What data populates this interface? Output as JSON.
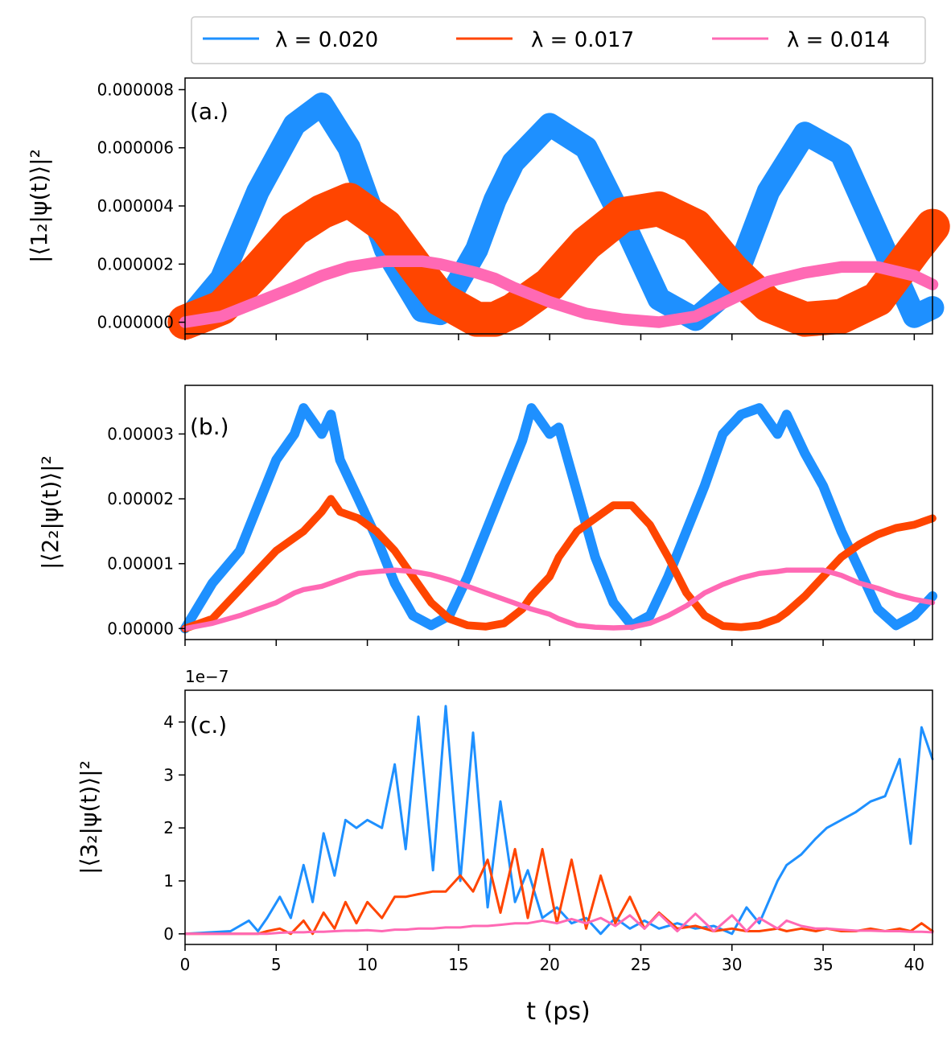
{
  "colors": {
    "blue": "#1E90FF",
    "orange": "#FF4500",
    "pink": "#FF69B4"
  },
  "legend": {
    "entries": [
      {
        "label": "λ = 0.020",
        "color": "#1E90FF"
      },
      {
        "label": "λ = 0.017",
        "color": "#FF4500"
      },
      {
        "label": "λ = 0.014",
        "color": "#FF69B4"
      }
    ],
    "placement": "top-center, above plots"
  },
  "shared_x": {
    "xlabel": "t  (ps)",
    "xlim": [
      0,
      41
    ],
    "ticks": [
      0,
      5,
      10,
      15,
      20,
      25,
      30,
      35,
      40
    ],
    "tick_labels": [
      "0",
      "5",
      "10",
      "15",
      "20",
      "25",
      "30",
      "35",
      "40"
    ]
  },
  "chart_data": [
    {
      "type": "line",
      "panel_tag": "(a.)",
      "ylabel": "|⟨1₂|ψ(t)⟩|²",
      "ylim": [
        -4e-07,
        8.4e-06
      ],
      "yticks": [
        0,
        2e-06,
        4e-06,
        6e-06,
        8e-06
      ],
      "ytick_labels": [
        "0.000000",
        "0.000002",
        "0.000004",
        "0.000006",
        "0.000008"
      ],
      "x": [
        0,
        2,
        4,
        6,
        7.5,
        9,
        11,
        13,
        14,
        16,
        17,
        18,
        20,
        22,
        24,
        26,
        28,
        30,
        32,
        34,
        36,
        38,
        40,
        41
      ],
      "series": [
        {
          "name": "λ = 0.020",
          "color": "#1E90FF",
          "band_width": 8e-07,
          "values": [
            0,
            1.5e-06,
            4.5e-06,
            6.8e-06,
            7.5e-06,
            6e-06,
            2.5e-06,
            4e-07,
            3e-07,
            2.5e-06,
            4.2e-06,
            5.5e-06,
            6.8e-06,
            6e-06,
            3.5e-06,
            8e-07,
            1e-07,
            1.2e-06,
            4.5e-06,
            6.5e-06,
            5.8e-06,
            3e-06,
            2e-07,
            5e-07
          ]
        },
        {
          "name": "λ = 0.017",
          "color": "#FF4500",
          "band_width": 1.2e-06,
          "values": [
            0,
            5e-07,
            1.8e-06,
            3.2e-06,
            3.8e-06,
            4.2e-06,
            3.3e-06,
            1.6e-06,
            8e-07,
            1e-07,
            1e-07,
            4e-07,
            1.3e-06,
            2.7e-06,
            3.7e-06,
            3.9e-06,
            3.3e-06,
            1.8e-06,
            6e-07,
            1e-07,
            2e-07,
            8e-07,
            2.5e-06,
            3.3e-06
          ]
        },
        {
          "name": "λ = 0.014",
          "color": "#FF69B4",
          "band_width": 4e-07,
          "values": [
            0,
            2e-07,
            7e-07,
            1.2e-06,
            1.6e-06,
            1.9e-06,
            2.1e-06,
            2.1e-06,
            2e-06,
            1.7e-06,
            1.5e-06,
            1.2e-06,
            7e-07,
            3e-07,
            1e-07,
            0,
            2e-07,
            8e-07,
            1.4e-06,
            1.7e-06,
            1.9e-06,
            1.9e-06,
            1.6e-06,
            1.3e-06
          ]
        }
      ]
    },
    {
      "type": "line",
      "panel_tag": "(b.)",
      "ylabel": "|⟨2₂|ψ(t)⟩|²",
      "ylim": [
        -1.7e-06,
        3.75e-05
      ],
      "yticks": [
        0,
        1e-05,
        2e-05,
        3e-05
      ],
      "ytick_labels": [
        "0.00000",
        "0.00001",
        "0.00002",
        "0.00003"
      ],
      "x": [
        0,
        1.5,
        3,
        4,
        5,
        6,
        6.5,
        7.5,
        8,
        8.5,
        9.5,
        10.5,
        11.5,
        12.5,
        13.5,
        14.5,
        15.5,
        16.5,
        17.5,
        18.5,
        19,
        20,
        20.5,
        21.5,
        22.5,
        23.5,
        24.5,
        25.5,
        26.5,
        27.5,
        28.5,
        29.5,
        30.5,
        31.5,
        32.5,
        33,
        34,
        35,
        36,
        37,
        38,
        39,
        40,
        41
      ],
      "series": [
        {
          "name": "λ = 0.020",
          "color": "#1E90FF",
          "band_width": 1.5e-06,
          "values": [
            0,
            7e-06,
            1.2e-05,
            1.9e-05,
            2.6e-05,
            3e-05,
            3.4e-05,
            3e-05,
            3.3e-05,
            2.6e-05,
            2e-05,
            1.4e-05,
            7e-06,
            2e-06,
            5e-07,
            2e-06,
            8e-06,
            1.5e-05,
            2.2e-05,
            2.9e-05,
            3.4e-05,
            3e-05,
            3.1e-05,
            2.1e-05,
            1.1e-05,
            4e-06,
            5e-07,
            2e-06,
            8e-06,
            1.5e-05,
            2.2e-05,
            3e-05,
            3.3e-05,
            3.4e-05,
            3e-05,
            3.3e-05,
            2.7e-05,
            2.2e-05,
            1.5e-05,
            9e-06,
            3e-06,
            5e-07,
            2e-06,
            5e-06
          ]
        },
        {
          "name": "λ = 0.017",
          "color": "#FF4500",
          "band_width": 1.2e-06,
          "values": [
            0,
            1.5e-06,
            6e-06,
            9e-06,
            1.2e-05,
            1.4e-05,
            1.5e-05,
            1.8e-05,
            2e-05,
            1.8e-05,
            1.7e-05,
            1.5e-05,
            1.2e-05,
            8e-06,
            4e-06,
            1.5e-06,
            5e-07,
            3e-07,
            8e-07,
            3e-06,
            5e-06,
            8e-06,
            1.1e-05,
            1.5e-05,
            1.7e-05,
            1.9e-05,
            1.9e-05,
            1.6e-05,
            1.1e-05,
            5.5e-06,
            2e-06,
            4e-07,
            2e-07,
            5e-07,
            1.5e-06,
            2.5e-06,
            5e-06,
            8e-06,
            1.1e-05,
            1.3e-05,
            1.45e-05,
            1.55e-05,
            1.6e-05,
            1.7e-05
          ]
        },
        {
          "name": "λ = 0.014",
          "color": "#FF69B4",
          "band_width": 8e-07,
          "values": [
            0,
            8e-07,
            2e-06,
            3e-06,
            4e-06,
            5.5e-06,
            6e-06,
            6.5e-06,
            7e-06,
            7.5e-06,
            8.5e-06,
            8.8e-06,
            9e-06,
            8.8e-06,
            8.3e-06,
            7.5e-06,
            6.5e-06,
            5.5e-06,
            4.5e-06,
            3.5e-06,
            3e-06,
            2.2e-06,
            1.5e-06,
            5e-07,
            2e-07,
            1e-07,
            2e-07,
            8e-07,
            2e-06,
            3.5e-06,
            5.5e-06,
            6.8e-06,
            7.8e-06,
            8.5e-06,
            8.8e-06,
            9e-06,
            9e-06,
            9e-06,
            8.2e-06,
            7e-06,
            6.2e-06,
            5.2e-06,
            4.5e-06,
            4e-06
          ]
        }
      ]
    },
    {
      "type": "line",
      "panel_tag": "(c.)",
      "ylabel": "|⟨3₂|ψ(t)⟩|²",
      "offset_text": "1e−7",
      "ylim": [
        -0.2,
        4.6
      ],
      "yticks": [
        0,
        1,
        2,
        3,
        4
      ],
      "ytick_labels": [
        "0",
        "1",
        "2",
        "3",
        "4"
      ],
      "x": [
        0,
        2.5,
        3.5,
        4,
        4.5,
        5.2,
        5.8,
        6.5,
        7,
        7.6,
        8.2,
        8.8,
        9.4,
        10,
        10.8,
        11.5,
        12.1,
        12.8,
        13.6,
        14.3,
        15.1,
        15.8,
        16.6,
        17.3,
        18.1,
        18.8,
        19.6,
        20.4,
        21.2,
        22,
        22.8,
        23.6,
        24.4,
        25.2,
        26,
        27,
        28,
        29,
        30,
        30.8,
        31.5,
        32.5,
        33,
        33.8,
        34.6,
        35.2,
        36,
        36.8,
        37.6,
        38.4,
        39.2,
        39.8,
        40.4,
        41
      ],
      "series": [
        {
          "name": "λ = 0.020",
          "color": "#1E90FF",
          "values": [
            0,
            0.05,
            0.25,
            0.05,
            0.3,
            0.7,
            0.3,
            1.3,
            0.6,
            1.9,
            1.1,
            2.15,
            2.0,
            2.15,
            2.0,
            3.2,
            1.6,
            4.1,
            1.2,
            4.3,
            1.0,
            3.8,
            0.5,
            2.5,
            0.6,
            1.2,
            0.3,
            0.5,
            0.2,
            0.3,
            0.0,
            0.3,
            0.1,
            0.25,
            0.1,
            0.2,
            0.1,
            0.15,
            0.0,
            0.5,
            0.2,
            1.0,
            1.3,
            1.5,
            1.8,
            2.0,
            2.15,
            2.3,
            2.5,
            2.6,
            3.3,
            1.7,
            3.9,
            3.3
          ]
        },
        {
          "name": "λ = 0.017",
          "color": "#FF4500",
          "values": [
            0,
            0,
            0,
            0,
            0.05,
            0.1,
            0.0,
            0.25,
            0.0,
            0.4,
            0.1,
            0.6,
            0.2,
            0.6,
            0.3,
            0.7,
            0.7,
            0.75,
            0.8,
            0.8,
            1.1,
            0.8,
            1.4,
            0.4,
            1.6,
            0.3,
            1.6,
            0.2,
            1.4,
            0.1,
            1.1,
            0.2,
            0.7,
            0.1,
            0.4,
            0.1,
            0.15,
            0.05,
            0.1,
            0.05,
            0.05,
            0.1,
            0.05,
            0.1,
            0.05,
            0.1,
            0.05,
            0.05,
            0.1,
            0.05,
            0.1,
            0.05,
            0.2,
            0.05
          ]
        },
        {
          "name": "λ = 0.014",
          "color": "#FF69B4",
          "values": [
            0,
            0,
            0,
            0,
            0,
            0.02,
            0.03,
            0.03,
            0.04,
            0.04,
            0.05,
            0.06,
            0.06,
            0.07,
            0.05,
            0.08,
            0.08,
            0.1,
            0.1,
            0.12,
            0.12,
            0.15,
            0.15,
            0.17,
            0.2,
            0.2,
            0.25,
            0.2,
            0.28,
            0.2,
            0.3,
            0.15,
            0.35,
            0.1,
            0.38,
            0.05,
            0.38,
            0.05,
            0.35,
            0.05,
            0.3,
            0.1,
            0.25,
            0.15,
            0.1,
            0.1,
            0.08,
            0.06,
            0.06,
            0.05,
            0.05,
            0.04,
            0.04,
            0.03
          ]
        }
      ]
    }
  ]
}
